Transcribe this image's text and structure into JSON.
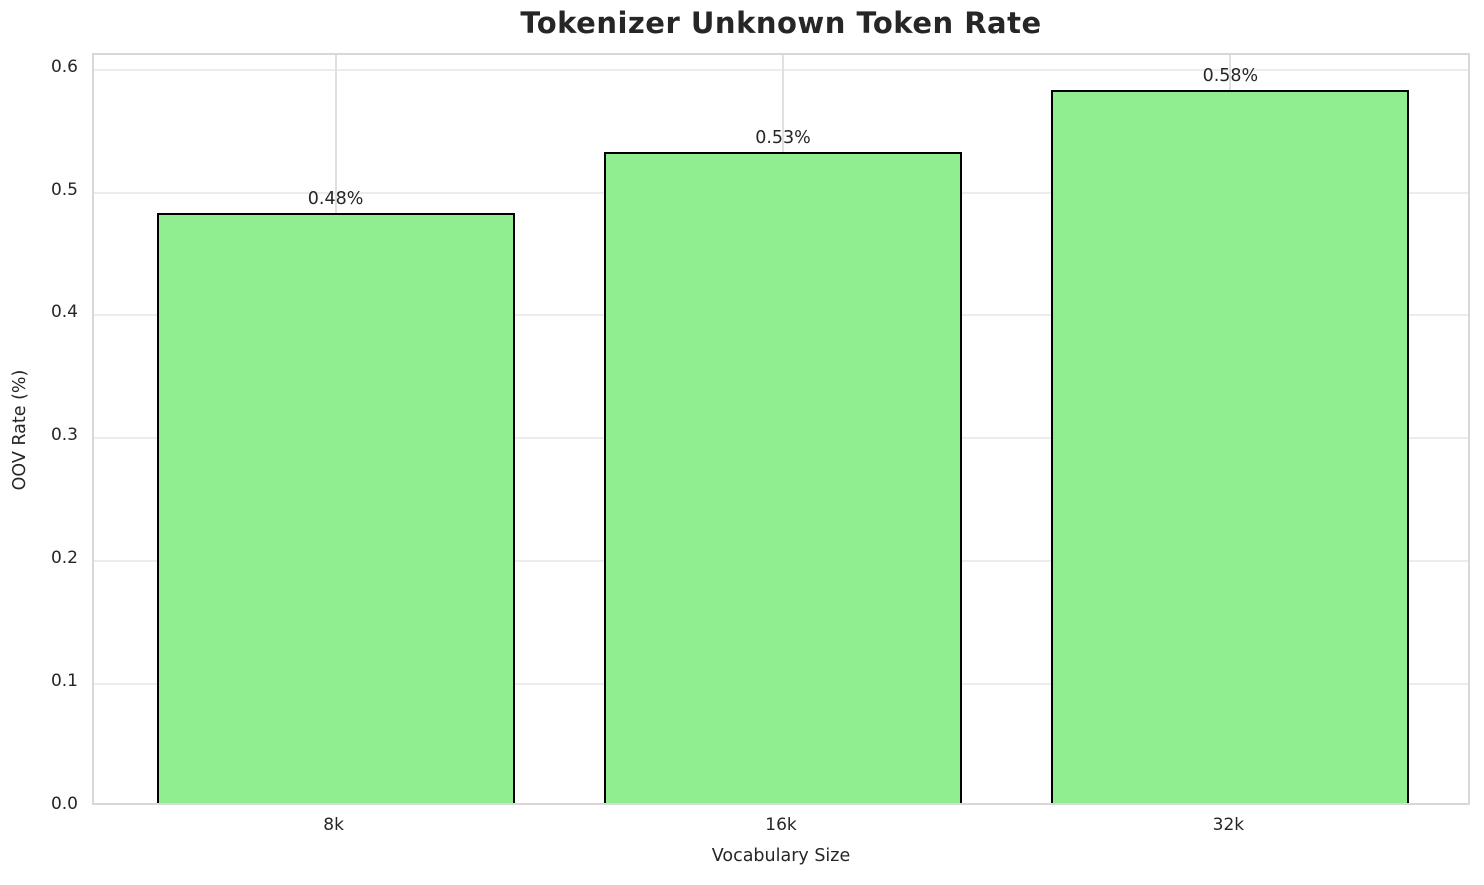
{
  "chart_data": {
    "type": "bar",
    "title": "Tokenizer Unknown Token Rate",
    "xlabel": "Vocabulary Size",
    "ylabel": "OOV Rate (%)",
    "categories": [
      "8k",
      "16k",
      "32k"
    ],
    "values": [
      0.48,
      0.53,
      0.58
    ],
    "bar_labels": [
      "0.48%",
      "0.53%",
      "0.58%"
    ],
    "ylim": [
      0,
      0.6
    ],
    "yticks": [
      0.0,
      0.1,
      0.2,
      0.3,
      0.4,
      0.5,
      0.6
    ],
    "ytick_labels": [
      "0.0",
      "0.1",
      "0.2",
      "0.3",
      "0.4",
      "0.5",
      "0.6"
    ],
    "grid": true,
    "legend": "none",
    "bar_color": "#90EE90",
    "bar_edge_color": "#000000",
    "grid_color": "#ececec",
    "spine_color": "#d8d8d8",
    "text_color": "#262626",
    "background_color": "#ffffff"
  }
}
